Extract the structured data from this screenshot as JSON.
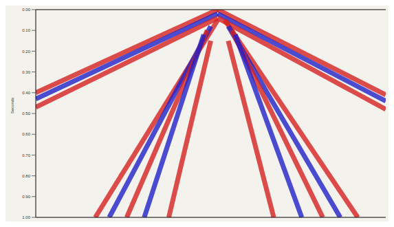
{
  "chart_data": {
    "type": "line",
    "y_label": "Seconds",
    "xlim": [
      0,
      100
    ],
    "ylim": [
      0,
      1
    ],
    "yticks": [
      {
        "value": 0,
        "label": "0.00"
      },
      {
        "value": 0.1,
        "label": "0.10"
      },
      {
        "value": 0.2,
        "label": "0.20"
      },
      {
        "value": 0.3,
        "label": "0.30"
      },
      {
        "value": 0.4,
        "label": "0.40"
      },
      {
        "value": 0.5,
        "label": "0.50"
      },
      {
        "value": 0.6,
        "label": "0.60"
      },
      {
        "value": 0.7,
        "label": "0.70"
      },
      {
        "value": 0.8,
        "label": "0.80"
      },
      {
        "value": 0.9,
        "label": "0.90"
      },
      {
        "value": 1,
        "label": "1.00"
      }
    ],
    "tick_labels": "y",
    "grid": false,
    "series": [
      {
        "color": "#d42020",
        "x": [
          52,
          0
        ],
        "values": [
          0.0,
          0.4
        ]
      },
      {
        "color": "#2020c8",
        "x": [
          52,
          0
        ],
        "values": [
          0.02,
          0.43
        ]
      },
      {
        "color": "#d42020",
        "x": [
          52,
          0
        ],
        "values": [
          0.04,
          0.47
        ]
      },
      {
        "color": "#d42020",
        "x": [
          52,
          100
        ],
        "values": [
          0.0,
          0.41
        ]
      },
      {
        "color": "#2020c8",
        "x": [
          52,
          100
        ],
        "values": [
          0.02,
          0.44
        ]
      },
      {
        "color": "#d42020",
        "x": [
          52,
          100
        ],
        "values": [
          0.04,
          0.48
        ]
      },
      {
        "color": "#d42020",
        "x": [
          52,
          17
        ],
        "values": [
          0.05,
          1.0
        ]
      },
      {
        "color": "#2020c8",
        "x": [
          50,
          21
        ],
        "values": [
          0.08,
          1.0
        ]
      },
      {
        "color": "#d42020",
        "x": [
          49,
          26
        ],
        "values": [
          0.1,
          1.0
        ]
      },
      {
        "color": "#2020c8",
        "x": [
          48,
          31
        ],
        "values": [
          0.12,
          1.0
        ]
      },
      {
        "color": "#d42020",
        "x": [
          50,
          38
        ],
        "values": [
          0.15,
          1.0
        ]
      },
      {
        "color": "#d42020",
        "x": [
          54,
          92
        ],
        "values": [
          0.05,
          1.0
        ]
      },
      {
        "color": "#2020c8",
        "x": [
          55,
          87
        ],
        "values": [
          0.08,
          1.0
        ]
      },
      {
        "color": "#d42020",
        "x": [
          56,
          82
        ],
        "values": [
          0.1,
          1.0
        ]
      },
      {
        "color": "#2020c8",
        "x": [
          57,
          76
        ],
        "values": [
          0.12,
          1.0
        ]
      },
      {
        "color": "#d42020",
        "x": [
          55,
          68
        ],
        "values": [
          0.15,
          1.0
        ]
      }
    ]
  }
}
